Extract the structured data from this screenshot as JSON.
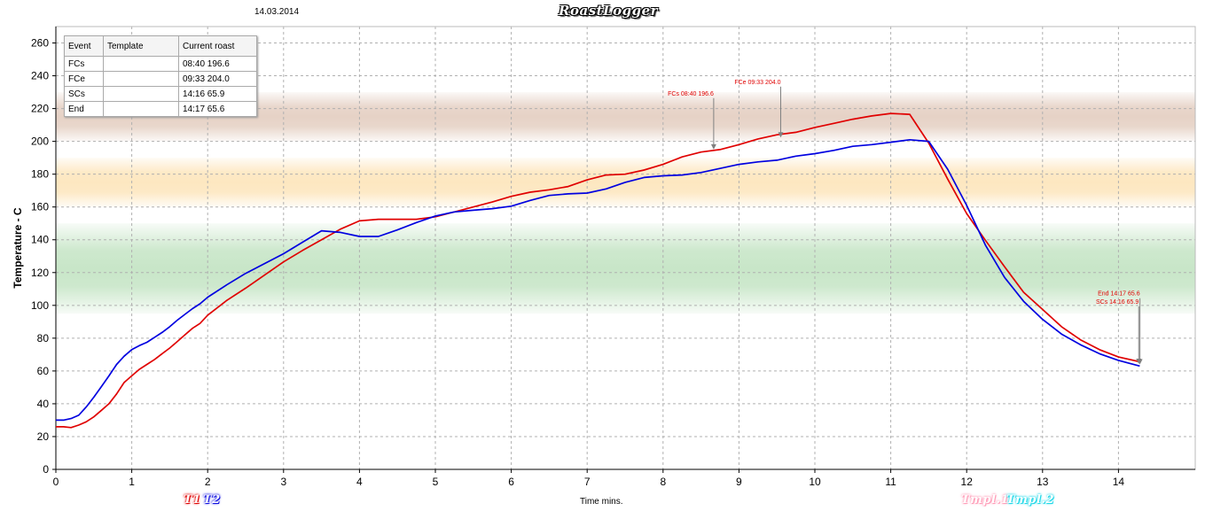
{
  "header": {
    "date": "14.03.2014",
    "app_title": "RoastLogger"
  },
  "events_table": {
    "columns": [
      "Event",
      "Template",
      "Current roast"
    ],
    "rows": [
      {
        "event": "FCs",
        "template": "",
        "current": "08:40 196.6"
      },
      {
        "event": "FCe",
        "template": "",
        "current": "09:33 204.0"
      },
      {
        "event": "SCs",
        "template": "",
        "current": "14:16 65.9"
      },
      {
        "event": "End",
        "template": "",
        "current": "14:17 65.6"
      }
    ]
  },
  "legend": {
    "t1": "T1",
    "t2": "T2",
    "tmpl1": "Tmpl.1",
    "tmpl2": "Tmpl.2"
  },
  "colors": {
    "t1": "#e00000",
    "t2": "#0000e0",
    "grid": "#b0b0b0",
    "annotation": "#e00000",
    "arrow": "#808080"
  },
  "chart_data": {
    "type": "line",
    "title": "",
    "xlabel": "Time mins.",
    "ylabel": "Temperature - C",
    "xlim": [
      0,
      15
    ],
    "ylim": [
      0,
      270
    ],
    "xticks": [
      0,
      1,
      2,
      3,
      4,
      5,
      6,
      7,
      8,
      9,
      10,
      11,
      12,
      13,
      14
    ],
    "yticks": [
      0,
      20,
      40,
      60,
      80,
      100,
      120,
      140,
      160,
      180,
      200,
      220,
      240,
      260
    ],
    "grid": true,
    "bands": [
      {
        "from": 95,
        "to": 150,
        "color": "#c8e6c8"
      },
      {
        "from": 160,
        "to": 190,
        "color": "#fde7c0"
      },
      {
        "from": 200,
        "to": 230,
        "color": "#e6d2c6"
      }
    ],
    "series": [
      {
        "name": "T1",
        "color": "#e00000",
        "x": [
          0,
          0.1,
          0.2,
          0.3,
          0.4,
          0.5,
          0.6,
          0.7,
          0.8,
          0.9,
          1.0,
          1.1,
          1.2,
          1.3,
          1.4,
          1.5,
          1.6,
          1.7,
          1.8,
          1.9,
          2.0,
          2.25,
          2.5,
          2.75,
          3.0,
          3.25,
          3.5,
          3.75,
          4.0,
          4.25,
          4.5,
          4.75,
          5.0,
          5.25,
          5.5,
          5.75,
          6.0,
          6.25,
          6.5,
          6.75,
          7.0,
          7.25,
          7.5,
          7.75,
          8.0,
          8.25,
          8.5,
          8.75,
          9.0,
          9.25,
          9.5,
          9.75,
          10.0,
          10.25,
          10.5,
          10.75,
          11.0,
          11.25,
          11.5,
          11.75,
          12.0,
          12.25,
          12.5,
          12.75,
          13.0,
          13.25,
          13.5,
          13.75,
          14.0,
          14.28
        ],
        "y": [
          26,
          26,
          25.5,
          27,
          29,
          32,
          36,
          40,
          46,
          53,
          57,
          61,
          64,
          67,
          70.5,
          74,
          78,
          82,
          86,
          89,
          94,
          103,
          110.5,
          118.5,
          126.5,
          133.5,
          140,
          146.5,
          151.5,
          152.5,
          152.5,
          152.5,
          154,
          157,
          160,
          163,
          166.5,
          169,
          170.5,
          172.5,
          176.5,
          179.5,
          180,
          182.5,
          186,
          190.5,
          193.5,
          195,
          198,
          201.5,
          204,
          205.5,
          208.5,
          211,
          213.5,
          215.5,
          217,
          216.5,
          199,
          177,
          156,
          139.5,
          123.5,
          108,
          97.5,
          87,
          79,
          73,
          68.5,
          65.6
        ]
      },
      {
        "name": "T2",
        "color": "#0000e0",
        "x": [
          0,
          0.1,
          0.2,
          0.3,
          0.4,
          0.5,
          0.6,
          0.7,
          0.8,
          0.9,
          1.0,
          1.1,
          1.2,
          1.3,
          1.4,
          1.5,
          1.6,
          1.7,
          1.8,
          1.9,
          2.0,
          2.25,
          2.5,
          2.75,
          3.0,
          3.25,
          3.5,
          3.75,
          4.0,
          4.25,
          4.5,
          4.75,
          5.0,
          5.25,
          5.5,
          5.75,
          6.0,
          6.25,
          6.5,
          6.75,
          7.0,
          7.25,
          7.5,
          7.75,
          8.0,
          8.25,
          8.5,
          8.75,
          9.0,
          9.25,
          9.5,
          9.75,
          10.0,
          10.25,
          10.5,
          10.75,
          11.0,
          11.25,
          11.5,
          11.75,
          12.0,
          12.25,
          12.5,
          12.75,
          13.0,
          13.25,
          13.5,
          13.75,
          14.0,
          14.28
        ],
        "y": [
          30,
          30,
          31,
          33,
          38,
          44,
          50.5,
          57,
          64,
          69,
          73,
          75.5,
          77.5,
          80.5,
          83.5,
          87,
          91,
          94.5,
          98,
          101,
          105,
          112.5,
          119.5,
          125.5,
          131.5,
          138.5,
          145.5,
          144.5,
          142,
          142,
          146,
          150.5,
          154.5,
          157,
          158,
          159,
          160.5,
          164,
          167,
          168,
          168.5,
          171,
          175,
          178,
          179,
          179.5,
          181,
          183.5,
          186,
          187.5,
          188.5,
          191,
          192.5,
          194.5,
          197,
          198,
          199.5,
          201,
          200,
          183,
          161,
          136.5,
          117,
          102.5,
          91.5,
          82.5,
          76,
          70.5,
          66.5,
          63
        ]
      }
    ],
    "annotations": [
      {
        "text": "FCs 08:40 196.6",
        "x": 8.667,
        "y": 196.6,
        "label_y": 228
      },
      {
        "text": "FCe 09:33 204.0",
        "x": 9.55,
        "y": 204.0,
        "label_y": 235
      },
      {
        "text": "End 14:17 65.6",
        "x": 14.283,
        "y": 65.6,
        "label_y": 106
      },
      {
        "text": "SCs 14:16 65.9",
        "x": 14.267,
        "y": 65.9,
        "label_y": 101
      }
    ]
  }
}
